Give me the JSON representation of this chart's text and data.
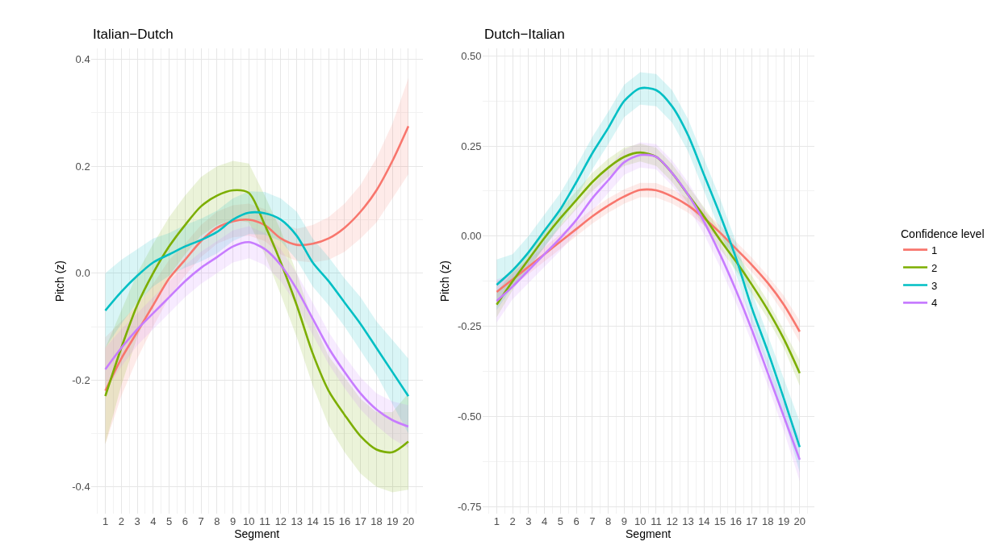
{
  "chart_data": [
    {
      "type": "line",
      "title": "Italian−Dutch",
      "xlabel": "Segment",
      "ylabel": "Pitch (z)",
      "x": [
        1,
        2,
        3,
        4,
        5,
        6,
        7,
        8,
        9,
        10,
        11,
        12,
        13,
        14,
        15,
        16,
        17,
        18,
        19,
        20
      ],
      "xlim": [
        0.1,
        20.9
      ],
      "xticks": [
        1,
        2,
        3,
        4,
        5,
        6,
        7,
        8,
        9,
        10,
        11,
        12,
        13,
        14,
        15,
        16,
        17,
        18,
        19,
        20
      ],
      "ylim": [
        -0.45,
        0.42
      ],
      "yticks": [
        {
          "value": -0.4,
          "label": "-0.4"
        },
        {
          "value": -0.2,
          "label": "-0.2"
        },
        {
          "value": 0,
          "label": "0.0"
        },
        0.2,
        0.4
      ],
      "grid": true,
      "legend": "right",
      "marker": "none",
      "line_style": "solid",
      "series": [
        {
          "name": "1",
          "color": "#f8766d",
          "values": [
            -0.22,
            -0.16,
            -0.11,
            -0.06,
            -0.01,
            0.025,
            0.06,
            0.085,
            0.097,
            0.1,
            0.09,
            0.065,
            0.053,
            0.055,
            0.065,
            0.085,
            0.115,
            0.155,
            0.21,
            0.275
          ],
          "lower": [
            -0.32,
            -0.23,
            -0.16,
            -0.1,
            -0.045,
            -0.005,
            0.03,
            0.055,
            0.067,
            0.07,
            0.06,
            0.035,
            0.023,
            0.02,
            0.025,
            0.04,
            0.065,
            0.095,
            0.14,
            0.185
          ],
          "upper": [
            -0.12,
            -0.09,
            -0.06,
            -0.02,
            0.025,
            0.055,
            0.09,
            0.115,
            0.127,
            0.13,
            0.12,
            0.095,
            0.083,
            0.09,
            0.105,
            0.13,
            0.165,
            0.215,
            0.28,
            0.365
          ]
        },
        {
          "name": "2",
          "color": "#7cae00",
          "values": [
            -0.23,
            -0.14,
            -0.06,
            0.0,
            0.05,
            0.09,
            0.125,
            0.145,
            0.155,
            0.15,
            0.09,
            0.02,
            -0.06,
            -0.15,
            -0.22,
            -0.265,
            -0.305,
            -0.33,
            -0.335,
            -0.315
          ],
          "lower": [
            -0.32,
            -0.21,
            -0.12,
            -0.055,
            -0.005,
            0.035,
            0.07,
            0.09,
            0.1,
            0.095,
            0.035,
            -0.04,
            -0.12,
            -0.21,
            -0.285,
            -0.335,
            -0.375,
            -0.4,
            -0.41,
            -0.405
          ],
          "upper": [
            -0.14,
            -0.07,
            0.0,
            0.055,
            0.105,
            0.145,
            0.18,
            0.2,
            0.21,
            0.205,
            0.145,
            0.08,
            0.0,
            -0.09,
            -0.155,
            -0.195,
            -0.235,
            -0.26,
            -0.26,
            -0.225
          ]
        },
        {
          "name": "3",
          "color": "#00bfc4",
          "values": [
            -0.07,
            -0.035,
            -0.005,
            0.02,
            0.035,
            0.05,
            0.062,
            0.077,
            0.1,
            0.113,
            0.112,
            0.1,
            0.07,
            0.02,
            -0.015,
            -0.055,
            -0.095,
            -0.14,
            -0.185,
            -0.23
          ],
          "lower": [
            -0.14,
            -0.095,
            -0.055,
            -0.025,
            -0.005,
            0.01,
            0.022,
            0.037,
            0.06,
            0.073,
            0.072,
            0.06,
            0.025,
            -0.025,
            -0.06,
            -0.1,
            -0.145,
            -0.19,
            -0.245,
            -0.3
          ],
          "upper": [
            0.0,
            0.025,
            0.045,
            0.065,
            0.075,
            0.09,
            0.102,
            0.117,
            0.14,
            0.153,
            0.152,
            0.14,
            0.115,
            0.065,
            0.03,
            -0.01,
            -0.045,
            -0.09,
            -0.125,
            -0.16
          ]
        },
        {
          "name": "4",
          "color": "#c77cff",
          "values": [
            -0.18,
            -0.14,
            -0.105,
            -0.075,
            -0.045,
            -0.015,
            0.01,
            0.03,
            0.05,
            0.058,
            0.045,
            0.015,
            -0.03,
            -0.085,
            -0.14,
            -0.185,
            -0.225,
            -0.255,
            -0.275,
            -0.287
          ],
          "lower": [
            -0.22,
            -0.175,
            -0.135,
            -0.105,
            -0.075,
            -0.045,
            -0.02,
            0.0,
            0.02,
            0.028,
            0.015,
            -0.015,
            -0.06,
            -0.115,
            -0.17,
            -0.215,
            -0.255,
            -0.285,
            -0.31,
            -0.327
          ],
          "upper": [
            -0.14,
            -0.105,
            -0.075,
            -0.045,
            -0.015,
            0.015,
            0.04,
            0.06,
            0.08,
            0.088,
            0.075,
            0.045,
            0.0,
            -0.055,
            -0.11,
            -0.155,
            -0.195,
            -0.225,
            -0.24,
            -0.247
          ]
        }
      ]
    },
    {
      "type": "line",
      "title": "Dutch−Italian",
      "xlabel": "Segment",
      "ylabel": "Pitch (z)",
      "legend_title": "Confidence level",
      "x": [
        1,
        2,
        3,
        4,
        5,
        6,
        7,
        8,
        9,
        10,
        11,
        12,
        13,
        14,
        15,
        16,
        17,
        18,
        19,
        20
      ],
      "xlim": [
        0.1,
        20.9
      ],
      "xticks": [
        1,
        2,
        3,
        4,
        5,
        6,
        7,
        8,
        9,
        10,
        11,
        12,
        13,
        14,
        15,
        16,
        17,
        18,
        19,
        20
      ],
      "ylim": [
        -0.77,
        0.52
      ],
      "yticks": [
        {
          "value": -0.75,
          "label": "-0.75"
        },
        {
          "value": -0.5,
          "label": "-0.50"
        },
        {
          "value": -0.25,
          "label": "-0.25"
        },
        {
          "value": 0,
          "label": "0.00"
        },
        0.25,
        {
          "value": 0.5,
          "label": "0.50"
        }
      ],
      "grid": true,
      "legend": "right",
      "marker": "none",
      "line_style": "solid",
      "series": [
        {
          "name": "1",
          "color": "#f8766d",
          "values": [
            -0.155,
            -0.12,
            -0.085,
            -0.05,
            -0.015,
            0.02,
            0.055,
            0.085,
            0.11,
            0.128,
            0.127,
            0.11,
            0.085,
            0.05,
            0.01,
            -0.035,
            -0.08,
            -0.13,
            -0.19,
            -0.265
          ],
          "lower": [
            -0.185,
            -0.14,
            -0.105,
            -0.07,
            -0.035,
            0.0,
            0.035,
            0.065,
            0.09,
            0.108,
            0.107,
            0.09,
            0.065,
            0.03,
            -0.01,
            -0.055,
            -0.1,
            -0.15,
            -0.215,
            -0.295
          ],
          "upper": [
            -0.125,
            -0.1,
            -0.065,
            -0.03,
            0.005,
            0.04,
            0.075,
            0.105,
            0.13,
            0.148,
            0.147,
            0.13,
            0.105,
            0.07,
            0.03,
            -0.015,
            -0.06,
            -0.11,
            -0.165,
            -0.235
          ]
        },
        {
          "name": "2",
          "color": "#7cae00",
          "values": [
            -0.19,
            -0.125,
            -0.065,
            -0.005,
            0.05,
            0.1,
            0.15,
            0.19,
            0.22,
            0.232,
            0.22,
            0.175,
            0.115,
            0.055,
            -0.01,
            -0.07,
            -0.135,
            -0.205,
            -0.285,
            -0.38
          ],
          "lower": [
            -0.225,
            -0.15,
            -0.09,
            -0.03,
            0.025,
            0.075,
            0.125,
            0.165,
            0.195,
            0.207,
            0.195,
            0.15,
            0.09,
            0.03,
            -0.035,
            -0.095,
            -0.16,
            -0.23,
            -0.31,
            -0.415
          ],
          "upper": [
            -0.155,
            -0.1,
            -0.04,
            0.02,
            0.075,
            0.125,
            0.175,
            0.215,
            0.245,
            0.257,
            0.245,
            0.2,
            0.14,
            0.08,
            0.015,
            -0.045,
            -0.11,
            -0.18,
            -0.26,
            -0.345
          ]
        },
        {
          "name": "3",
          "color": "#00bfc4",
          "values": [
            -0.135,
            -0.095,
            -0.045,
            0.015,
            0.075,
            0.15,
            0.23,
            0.3,
            0.375,
            0.41,
            0.405,
            0.36,
            0.28,
            0.17,
            0.06,
            -0.06,
            -0.2,
            -0.32,
            -0.45,
            -0.585
          ],
          "lower": [
            -0.205,
            -0.14,
            -0.09,
            -0.03,
            0.03,
            0.105,
            0.185,
            0.255,
            0.33,
            0.365,
            0.36,
            0.315,
            0.235,
            0.125,
            0.015,
            -0.105,
            -0.245,
            -0.365,
            -0.505,
            -0.655
          ],
          "upper": [
            -0.065,
            -0.05,
            0.0,
            0.06,
            0.12,
            0.195,
            0.275,
            0.345,
            0.42,
            0.455,
            0.45,
            0.405,
            0.325,
            0.215,
            0.105,
            -0.015,
            -0.155,
            -0.275,
            -0.395,
            -0.515
          ]
        },
        {
          "name": "4",
          "color": "#c77cff",
          "values": [
            -0.18,
            -0.14,
            -0.095,
            -0.05,
            -0.005,
            0.045,
            0.105,
            0.155,
            0.205,
            0.225,
            0.22,
            0.175,
            0.115,
            0.04,
            -0.05,
            -0.15,
            -0.26,
            -0.38,
            -0.5,
            -0.62
          ],
          "lower": [
            -0.24,
            -0.175,
            -0.13,
            -0.085,
            -0.04,
            0.01,
            0.07,
            0.12,
            0.17,
            0.19,
            0.185,
            0.14,
            0.08,
            0.005,
            -0.085,
            -0.185,
            -0.295,
            -0.415,
            -0.54,
            -0.68
          ],
          "upper": [
            -0.12,
            -0.105,
            -0.06,
            -0.015,
            0.03,
            0.08,
            0.14,
            0.19,
            0.24,
            0.26,
            0.255,
            0.21,
            0.15,
            0.075,
            -0.015,
            -0.115,
            -0.225,
            -0.345,
            -0.46,
            -0.56
          ]
        }
      ]
    }
  ]
}
